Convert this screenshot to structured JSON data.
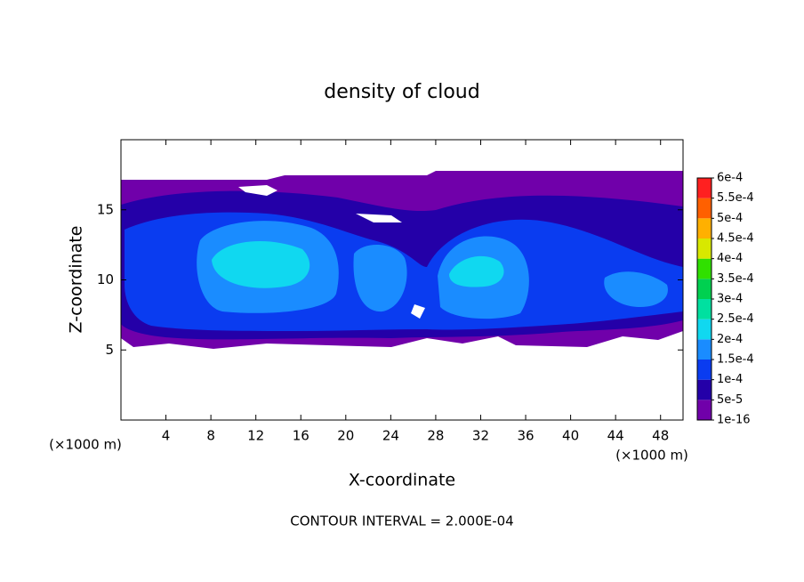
{
  "chart_data": {
    "type": "contour",
    "title": "density of cloud",
    "x_label": "X-coordinate",
    "y_label": "Z-coordinate",
    "x_unit_left": "(×1000 m)",
    "x_unit_right": "(×1000 m)",
    "note": "CONTOUR INTERVAL = 2.000E-04",
    "xlim": [
      0,
      50
    ],
    "xticks": [
      4,
      8,
      12,
      16,
      20,
      24,
      28,
      32,
      36,
      40,
      44,
      48
    ],
    "ylim": [
      0,
      20
    ],
    "yticks": [
      5,
      10,
      15
    ],
    "levels": [
      {
        "value": 1e-16,
        "label": "1e-16"
      },
      {
        "value": 5e-05,
        "label": "5e-5"
      },
      {
        "value": 0.0001,
        "label": "1e-4"
      },
      {
        "value": 0.00015,
        "label": "1.5e-4"
      },
      {
        "value": 0.0002,
        "label": "2e-4"
      },
      {
        "value": 0.00025,
        "label": "2.5e-4"
      },
      {
        "value": 0.0003,
        "label": "3e-4"
      },
      {
        "value": 0.00035,
        "label": "3.5e-4"
      },
      {
        "value": 0.0004,
        "label": "4e-4"
      },
      {
        "value": 0.00045,
        "label": "4.5e-4"
      },
      {
        "value": 0.0005,
        "label": "5e-4"
      },
      {
        "value": 0.00055,
        "label": "5.5e-4"
      },
      {
        "value": 0.0006,
        "label": "6e-4"
      }
    ],
    "colors": [
      "#7000aa",
      "#2400a8",
      "#0a3cf0",
      "#1a8cff",
      "#10d8f0",
      "#00e0a0",
      "#00d050",
      "#30e000",
      "#d8e800",
      "#ffb000",
      "#ff6000",
      "#ff2020"
    ]
  }
}
